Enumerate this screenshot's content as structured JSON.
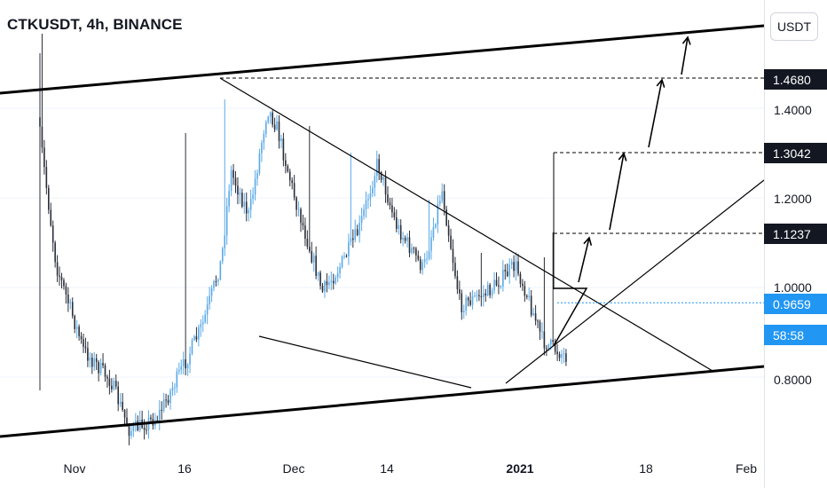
{
  "header": {
    "symbol_title": "CTKUSDT, 4h, BINANCE",
    "currency_button": "USDT"
  },
  "price_axis": {
    "ticks": [
      "1.4000",
      "1.2000",
      "1.0000",
      "0.8000"
    ],
    "tags": {
      "target_3": "1.4680",
      "target_2": "1.3042",
      "target_1": "1.1237",
      "last_price": "0.9659",
      "countdown": "58:58"
    }
  },
  "time_axis": {
    "ticks": [
      "Nov",
      "16",
      "Dec",
      "14",
      "2021",
      "18",
      "Feb"
    ]
  },
  "colors": {
    "up_candle": "#5aa9e6",
    "down_candle": "#2a2e39",
    "drawing": "#000000",
    "last_price": "#2196f3",
    "tag_bg": "#131722"
  },
  "chart_data": {
    "type": "candlestick",
    "title": "CTKUSDT, 4h, BINANCE",
    "y_unit": "USDT",
    "ylim": [
      0.6,
      1.72
    ],
    "xlim": [
      "2020-10-24",
      "2021-02-02"
    ],
    "timeframe": "4h",
    "last_price": 0.9659,
    "countdown": "58:58",
    "horizontal_levels": [
      1.468,
      1.3042,
      1.1237
    ],
    "close_path": [
      {
        "date": "2020-10-26",
        "close": 1.38
      },
      {
        "date": "2020-10-28",
        "close": 1.05
      },
      {
        "date": "2020-10-31",
        "close": 0.86
      },
      {
        "date": "2020-11-03",
        "close": 0.79
      },
      {
        "date": "2020-11-05",
        "close": 0.68
      },
      {
        "date": "2020-11-08",
        "close": 0.71
      },
      {
        "date": "2020-11-11",
        "close": 0.83
      },
      {
        "date": "2020-11-13",
        "close": 0.92
      },
      {
        "date": "2020-11-15",
        "close": 1.06
      },
      {
        "date": "2020-11-16",
        "close": 1.26
      },
      {
        "date": "2020-11-18",
        "close": 1.16
      },
      {
        "date": "2020-11-20",
        "close": 1.4
      },
      {
        "date": "2020-11-21",
        "close": 1.36
      },
      {
        "date": "2020-11-23",
        "close": 1.2
      },
      {
        "date": "2020-11-26",
        "close": 0.99
      },
      {
        "date": "2020-11-28",
        "close": 1.05
      },
      {
        "date": "2020-11-30",
        "close": 1.13
      },
      {
        "date": "2020-12-02",
        "close": 1.28
      },
      {
        "date": "2020-12-04",
        "close": 1.14
      },
      {
        "date": "2020-12-07",
        "close": 1.04
      },
      {
        "date": "2020-12-09",
        "close": 1.22
      },
      {
        "date": "2020-12-11",
        "close": 0.96
      },
      {
        "date": "2020-12-14",
        "close": 0.99
      },
      {
        "date": "2020-12-17",
        "close": 1.05
      },
      {
        "date": "2020-12-18",
        "close": 1.0
      },
      {
        "date": "2020-12-20",
        "close": 0.88
      },
      {
        "date": "2020-12-23",
        "close": 0.84
      },
      {
        "date": "2020-12-26",
        "close": 0.82
      },
      {
        "date": "2020-12-29",
        "close": 0.83
      },
      {
        "date": "2021-01-01",
        "close": 0.91
      },
      {
        "date": "2021-01-03",
        "close": 1.0
      },
      {
        "date": "2021-01-04",
        "close": 1.06
      },
      {
        "date": "2021-01-05",
        "close": 0.9659
      }
    ]
  }
}
